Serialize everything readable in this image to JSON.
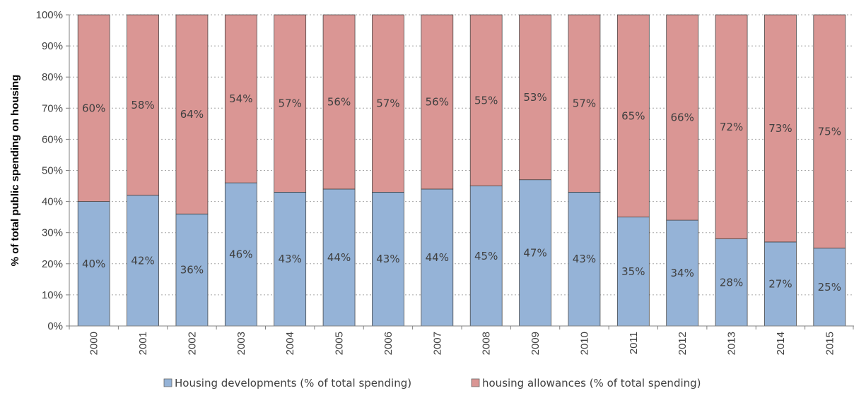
{
  "chart_data": {
    "type": "bar",
    "stacked": true,
    "title": "",
    "xlabel": "",
    "ylabel": "% of total public spending on housing",
    "ylim": [
      0,
      100
    ],
    "yticks": [
      "0%",
      "10%",
      "20%",
      "30%",
      "40%",
      "50%",
      "60%",
      "70%",
      "80%",
      "90%",
      "100%"
    ],
    "grid": true,
    "legend_position": "bottom",
    "categories": [
      "2000",
      "2001",
      "2002",
      "2003",
      "2004",
      "2005",
      "2006",
      "2007",
      "2008",
      "2009",
      "2010",
      "2011",
      "2012",
      "2013",
      "2014",
      "2015"
    ],
    "series": [
      {
        "name": "Housing developments (% of total spending)",
        "color": "#95b3d7",
        "values": [
          40,
          42,
          36,
          46,
          43,
          44,
          43,
          44,
          45,
          47,
          43,
          35,
          34,
          28,
          27,
          25
        ],
        "labels": [
          "40%",
          "42%",
          "36%",
          "46%",
          "43%",
          "44%",
          "43%",
          "44%",
          "45%",
          "47%",
          "43%",
          "35%",
          "34%",
          "28%",
          "27%",
          "25%"
        ]
      },
      {
        "name": "housing allowances (% of total spending)",
        "color": "#da9694",
        "values": [
          60,
          58,
          64,
          54,
          57,
          56,
          57,
          56,
          55,
          53,
          57,
          65,
          66,
          72,
          73,
          75
        ],
        "labels": [
          "60%",
          "58%",
          "64%",
          "54%",
          "57%",
          "56%",
          "57%",
          "56%",
          "55%",
          "53%",
          "57%",
          "65%",
          "66%",
          "72%",
          "73%",
          "75%"
        ]
      }
    ]
  }
}
